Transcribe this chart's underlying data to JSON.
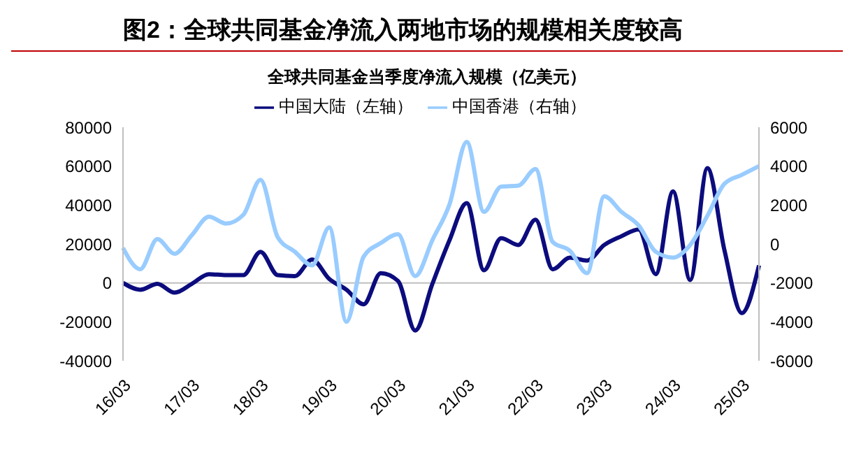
{
  "chart_data": {
    "type": "line",
    "title": "图2：全球共同基金净流入两地市场的规模相关度较高",
    "subtitle": "全球共同基金当季度净流入规模（亿美元）",
    "categories": [
      "16/03",
      null,
      null,
      null,
      "17/03",
      null,
      null,
      null,
      "18/03",
      null,
      null,
      null,
      "19/03",
      null,
      null,
      null,
      "20/03",
      null,
      null,
      null,
      "21/03",
      null,
      null,
      null,
      "22/03",
      null,
      null,
      null,
      "23/03",
      null,
      null,
      null,
      "24/03",
      null,
      null,
      null,
      "25/03",
      null
    ],
    "series": [
      {
        "name": "中国大陆（左轴）",
        "color": "#0c0c7e",
        "values": [
          0,
          -3500,
          -500,
          -5000,
          -500,
          4500,
          4000,
          4000,
          16000,
          4000,
          3500,
          12000,
          2000,
          -3500,
          -11000,
          5000,
          1000,
          -24500,
          -500,
          22000,
          41000,
          6500,
          23000,
          19500,
          32500,
          7000,
          13000,
          11500,
          19500,
          24000,
          27500,
          4500,
          47000,
          1500,
          59000,
          16500,
          -15500,
          9000
        ]
      },
      {
        "name": "中国香港（右轴）",
        "color": "#99ccff",
        "axis": "y2",
        "values": [
          -200,
          -1300,
          250,
          -500,
          450,
          1400,
          1050,
          1500,
          3300,
          350,
          -400,
          -1100,
          850,
          -4000,
          -650,
          50,
          500,
          -1650,
          200,
          2050,
          5250,
          1650,
          2950,
          3000,
          3850,
          100,
          -350,
          -1500,
          2450,
          1650,
          950,
          -400,
          -700,
          -50,
          1450,
          3100,
          3550,
          4000
        ]
      }
    ],
    "ylim": [
      -40000,
      80000
    ],
    "yticks": [
      -40000,
      -20000,
      0,
      20000,
      40000,
      60000,
      80000
    ],
    "y2lim": [
      -6000,
      6000
    ],
    "y2ticks": [
      -6000,
      -4000,
      -2000,
      0,
      2000,
      4000,
      6000
    ],
    "ref_lines": [
      {
        "axis": "y",
        "value": 0,
        "color": "#bfbfbf"
      }
    ],
    "legend": "top",
    "marker": "none",
    "line_style": "solid"
  }
}
